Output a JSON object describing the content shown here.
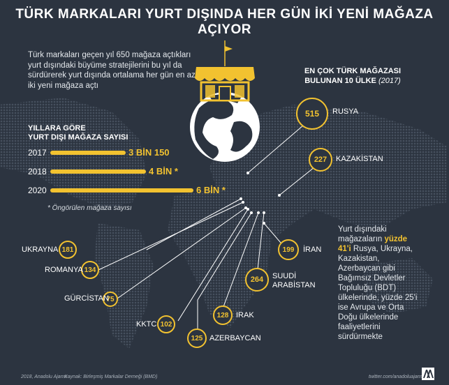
{
  "title": "TÜRK MARKALARI YURT DIŞINDA HER GÜN İKİ YENİ MAĞAZA AÇIYOR",
  "intro": "Türk markaları geçen yıl 650 mağaza açtıkları yurt dışındaki büyüme stratejilerini bu yıl da sürdürerek yurt dışında ortalama her gün en az iki yeni mağaza açtı",
  "years": {
    "title_line1": "YILLARA GÖRE",
    "title_line2": "YURT DIŞI MAĞAZA SAYISI",
    "rows": [
      {
        "year": "2017",
        "label": "3 BİN 150",
        "value": 3150
      },
      {
        "year": "2018",
        "label": "4 BİN *",
        "value": 4000
      },
      {
        "year": "2020",
        "label": "6 BİN *",
        "value": 6000
      }
    ],
    "footnote": "* Öngörülen mağaza sayısı"
  },
  "top10": {
    "line1": "EN ÇOK TÜRK MAĞAZASI",
    "line2": "BULUNAN 10 ÜLKE",
    "year": "(2017)"
  },
  "countries": [
    {
      "name": "RUSYA",
      "value": "515"
    },
    {
      "name": "KAZAKİSTAN",
      "value": "227"
    },
    {
      "name": "UKRAYNA",
      "value": "181"
    },
    {
      "name": "ROMANYA",
      "value": "134"
    },
    {
      "name": "GÜRCİSTAN",
      "value": "75"
    },
    {
      "name": "KKTC",
      "value": "102"
    },
    {
      "name": "AZERBAYCAN",
      "value": "125"
    },
    {
      "name": "IRAK",
      "value": "128"
    },
    {
      "name": "SUUDİ",
      "name2": "ARABİSTAN",
      "value": "264"
    },
    {
      "name": "İRAN",
      "value": "199"
    }
  ],
  "right_text": {
    "part1": "Yurt dışındaki mağazaların ",
    "highlight": "yüzde 41'i",
    "part2": " Rusya, Ukrayna, Kazakistan, Azerbaycan gibi Bağımsız Devletler Topluluğu (BDT) ülkelerinde, yüzde 25'i ise Avrupa ve Orta Doğu ülkelerinde faaliyetlerini sürdürmekte"
  },
  "footer": {
    "copyright": "2018, Anadolu Ajansı",
    "source": "Kaynak: Birleşmiş Markalar Derneği (BMD)",
    "twitter": "twitter.com/anadoluajansi"
  },
  "colors": {
    "background": "#2c3440",
    "accent": "#f2c230",
    "map": "#3b4451"
  },
  "icons": [
    "store-icon",
    "globe-icon",
    "flag-icon",
    "aa-logo-icon"
  ]
}
